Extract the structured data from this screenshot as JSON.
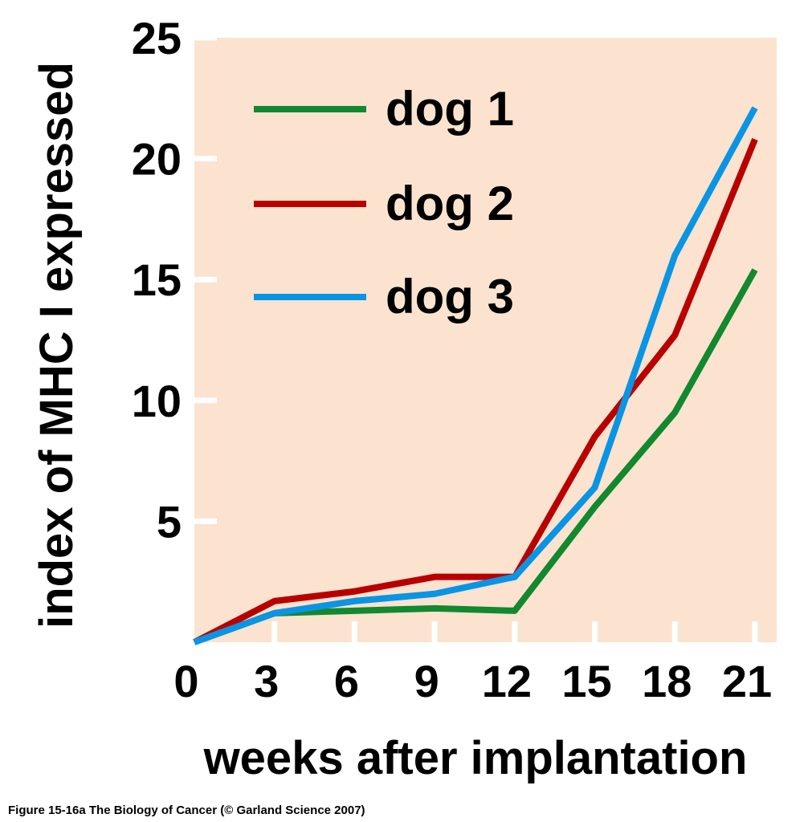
{
  "chart_data": {
    "type": "line",
    "title": "",
    "xlabel": "weeks after implantation",
    "ylabel": "index of MHC I expressed",
    "x": [
      0,
      3,
      6,
      9,
      12,
      15,
      18,
      21
    ],
    "xticks": [
      "0",
      "3",
      "6",
      "9",
      "12",
      "15",
      "18",
      "21"
    ],
    "yticks": [
      "5",
      "10",
      "15",
      "20",
      "25"
    ],
    "xlim": [
      0,
      21
    ],
    "ylim": [
      0,
      25
    ],
    "grid": false,
    "legend_position": "top-left",
    "background_color": "#fbe3cf",
    "series": [
      {
        "name": "dog 1",
        "color": "#12882f",
        "values": [
          0,
          1.2,
          1.3,
          1.4,
          1.3,
          5.6,
          9.5,
          15.4
        ]
      },
      {
        "name": "dog 2",
        "color": "#b80000",
        "values": [
          0,
          1.7,
          2.1,
          2.7,
          2.7,
          8.5,
          12.7,
          20.8
        ]
      },
      {
        "name": "dog 3",
        "color": "#0a94e4",
        "values": [
          0,
          1.2,
          1.7,
          2.0,
          2.7,
          6.4,
          16.0,
          22.1
        ]
      }
    ]
  },
  "caption": "Figure 15-16a  The Biology of Cancer (© Garland Science 2007)"
}
